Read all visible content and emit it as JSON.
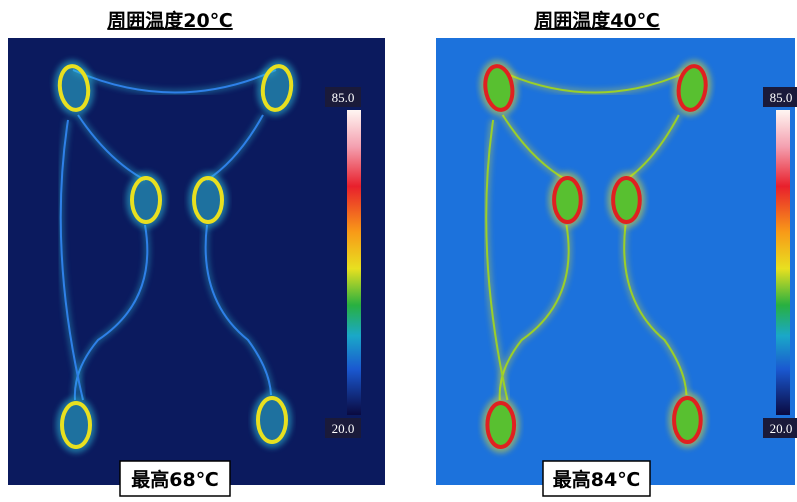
{
  "panels": [
    {
      "title": "周囲温度20℃",
      "scale_max": "85.0",
      "scale_min": "20.0",
      "max_label": "最高68℃"
    },
    {
      "title": "周囲温度40℃",
      "scale_max": "85.0",
      "scale_min": "20.0",
      "max_label": "最高84℃"
    }
  ]
}
